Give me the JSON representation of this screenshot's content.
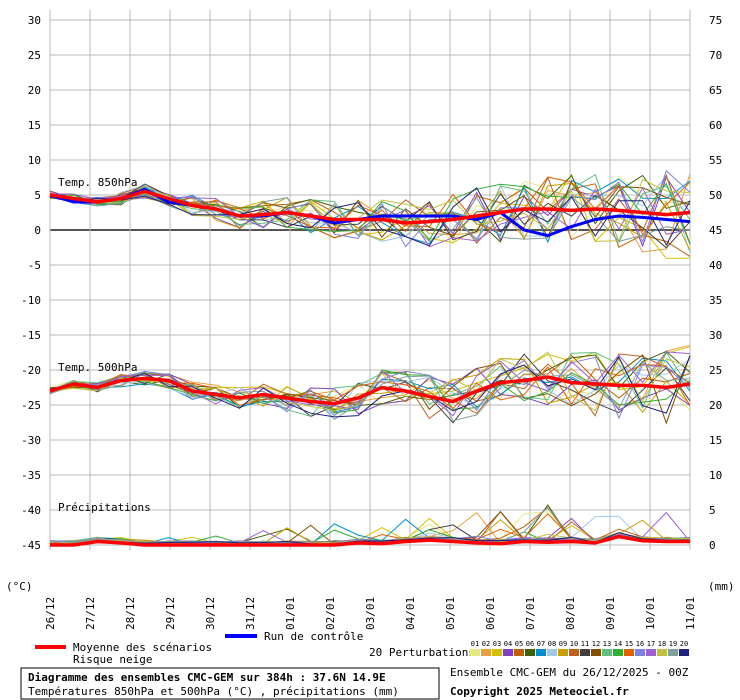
{
  "chart_data": {
    "type": "line",
    "title": "Diagramme des ensembles CMC-GEM sur 384h : 37.6N 14.9E",
    "subtitle": "Températures 850hPa et 500hPa (°C) , précipitations (mm)",
    "run_info": "Ensemble CMC-GEM du 26/12/2025 - 00Z",
    "copyright": "Copyright 2025 Meteociel.fr",
    "left_unit": "(°C)",
    "right_unit": "(mm)",
    "left_axis": {
      "ticks": [
        30,
        25,
        20,
        15,
        10,
        5,
        0,
        -5,
        -10,
        -15,
        -20,
        -25,
        -30,
        -35,
        -40,
        -45
      ],
      "ylim": [
        -45,
        30
      ]
    },
    "right_axis": {
      "ticks": [
        75,
        70,
        65,
        60,
        55,
        50,
        45,
        40,
        35,
        30,
        25,
        20,
        15,
        10,
        5,
        0
      ],
      "ylim": [
        0,
        75
      ]
    },
    "x_ticks": [
      "26/12",
      "27/12",
      "28/12",
      "29/12",
      "30/12",
      "31/12",
      "01/01",
      "02/01",
      "03/01",
      "04/01",
      "05/01",
      "06/01",
      "07/01",
      "08/01",
      "09/01",
      "10/01",
      "11/01"
    ],
    "panel_labels": [
      "Temp. 850hPa",
      "Temp. 500hPa",
      "Précipitations"
    ],
    "legend": {
      "mean": "Moyenne des scénarios",
      "snow": "Risque neige",
      "control": "Run de contrôle",
      "perturbations": "20 Perturbations",
      "member_numbers": [
        "01",
        "02",
        "03",
        "04",
        "05",
        "06",
        "07",
        "08",
        "09",
        "10",
        "11",
        "12",
        "13",
        "14",
        "15",
        "16",
        "17",
        "18",
        "19",
        "20"
      ]
    },
    "colors": {
      "mean": "#ff0000",
      "control": "#0000ff",
      "members": [
        "#e8e880",
        "#e8a040",
        "#d4c000",
        "#8040c0",
        "#c06000",
        "#406000",
        "#0090d0",
        "#a0c8e8",
        "#c8a000",
        "#c06020",
        "#404040",
        "#805000",
        "#60c080",
        "#30b030",
        "#e06000",
        "#8080e0",
        "#a060d0",
        "#c0c040",
        "#80a0a0",
        "#202080"
      ]
    },
    "series": [
      {
        "name": "Moyenne des scénarios",
        "t850": [
          5,
          4.5,
          4,
          4.5,
          5.5,
          4.5,
          3.5,
          3,
          2,
          2.2,
          2.5,
          2,
          1.5,
          1.5,
          1.5,
          1,
          1.2,
          1.5,
          2,
          2.5,
          3,
          3,
          2.8,
          3,
          2.8,
          2.5,
          2.2,
          2.5
        ],
        "t500": [
          -23,
          -22,
          -22.5,
          -21.5,
          -21.2,
          -21.5,
          -23,
          -23.5,
          -24,
          -23.5,
          -24,
          -24.5,
          -24.8,
          -24,
          -22.5,
          -23,
          -23.8,
          -24.5,
          -23,
          -21.8,
          -21.5,
          -21,
          -21.8,
          -22,
          -22.2,
          -22.2,
          -22.5,
          -22
        ],
        "precip": [
          0,
          0,
          0.5,
          0.3,
          0,
          0,
          0,
          0,
          0,
          0,
          0,
          0,
          0,
          0.3,
          0.2,
          0.5,
          0.7,
          0.5,
          0.3,
          0.2,
          0.5,
          0.4,
          0.5,
          0.3,
          1.2,
          0.6,
          0.5,
          0.5
        ]
      },
      {
        "name": "Run de contrôle",
        "t850": [
          5,
          4,
          4,
          4.5,
          5.8,
          4,
          3.5,
          3,
          2,
          2,
          2.5,
          2,
          1,
          1.5,
          2,
          2,
          2,
          2,
          1.5,
          2.5,
          0,
          -0.8,
          0.5,
          1.5,
          2,
          1.8,
          1.5,
          1.2
        ]
      }
    ]
  }
}
